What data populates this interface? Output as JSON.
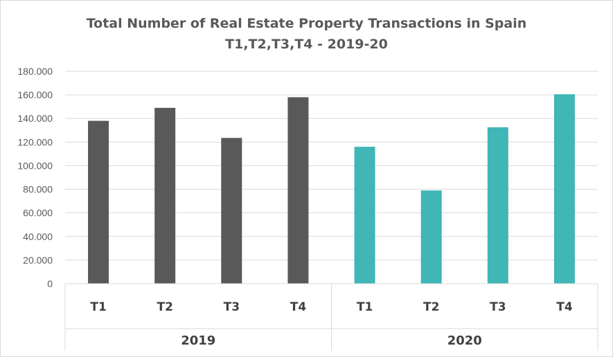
{
  "chart_data": {
    "type": "bar",
    "title": "Total Number of Real Estate Property Transactions in Spain",
    "subtitle": "T1,T2,T3,T4 - 2019-20",
    "groups": [
      {
        "label": "2019",
        "color": "#595959",
        "categories": [
          "T1",
          "T2",
          "T3",
          "T4"
        ],
        "values": [
          138000,
          149000,
          123500,
          158000
        ]
      },
      {
        "label": "2020",
        "color": "#40b6b6",
        "categories": [
          "T1",
          "T2",
          "T3",
          "T4"
        ],
        "values": [
          116000,
          79000,
          132500,
          160500
        ]
      }
    ],
    "ylim": [
      0,
      180000
    ],
    "yticks": [
      0,
      20000,
      40000,
      60000,
      80000,
      100000,
      120000,
      140000,
      160000,
      180000
    ],
    "ytick_labels": [
      "0",
      "20.000",
      "40.000",
      "60.000",
      "80.000",
      "100.000",
      "120.000",
      "140.000",
      "160.000",
      "180.000"
    ],
    "grid": true,
    "legend": "none"
  }
}
